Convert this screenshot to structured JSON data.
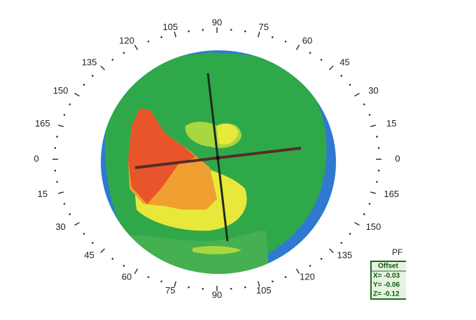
{
  "scale_labels": [
    "0",
    "15",
    "30",
    "45",
    "60",
    "75",
    "90",
    "105",
    "120",
    "135",
    "150",
    "165",
    "0",
    "15",
    "30",
    "45",
    "60",
    "75",
    "90",
    "105",
    "120",
    "135",
    "150",
    "165"
  ],
  "inset": {
    "title": "PF",
    "header": "Offset",
    "rows": [
      "X= -0.03",
      "Y= -0.06",
      "Z= -0.12"
    ]
  }
}
